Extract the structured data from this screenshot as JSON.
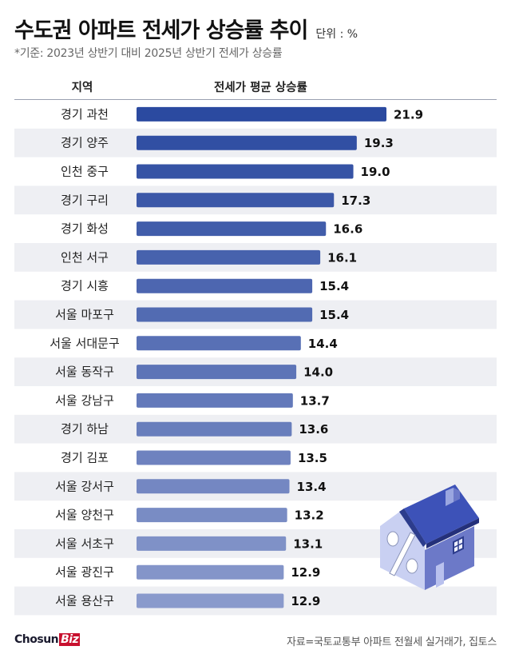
{
  "header": {
    "title": "수도권 아파트 전세가 상승률 추이",
    "unit": "단위 : %",
    "note": "*기준: 2023년 상반기 대비 2025년 상반기 전세가 상승률"
  },
  "columns": {
    "region": "지역",
    "value": "전세가 평균 상승률"
  },
  "chart_data": {
    "type": "bar",
    "orientation": "horizontal",
    "title": "수도권 아파트 전세가 상승률 추이",
    "categories": [
      "경기 과천",
      "경기 양주",
      "인천 중구",
      "경기 구리",
      "경기 화성",
      "인천 서구",
      "경기 시흥",
      "서울 마포구",
      "서울 서대문구",
      "서울 동작구",
      "서울 강남구",
      "경기 하남",
      "경기 김포",
      "서울 강서구",
      "서울 양천구",
      "서울 서초구",
      "서울 광진구",
      "서울 용산구"
    ],
    "values": [
      21.9,
      19.3,
      19.0,
      17.3,
      16.6,
      16.1,
      15.4,
      15.4,
      14.4,
      14.0,
      13.7,
      13.6,
      13.5,
      13.4,
      13.2,
      13.1,
      12.9,
      12.9
    ],
    "xlabel": "",
    "ylabel": "",
    "xlim": [
      0,
      25
    ],
    "value_labels": [
      "21.9",
      "19.3",
      "19.0",
      "17.3",
      "16.6",
      "16.1",
      "15.4",
      "15.4",
      "14.4",
      "14.0",
      "13.7",
      "13.6",
      "13.5",
      "13.4",
      "13.2",
      "13.1",
      "12.9",
      "12.9"
    ],
    "colors": {
      "top": "#2b4aa0",
      "bottom": "#8a9acc"
    },
    "grid": false,
    "legend": "none"
  },
  "decor": {
    "house_icon": "house-percent-icon"
  },
  "footer": {
    "logo_main": "Chosun",
    "logo_biz": "Biz",
    "source": "자료=국토교통부 아파트 전월세 실거래가, 집토스"
  }
}
